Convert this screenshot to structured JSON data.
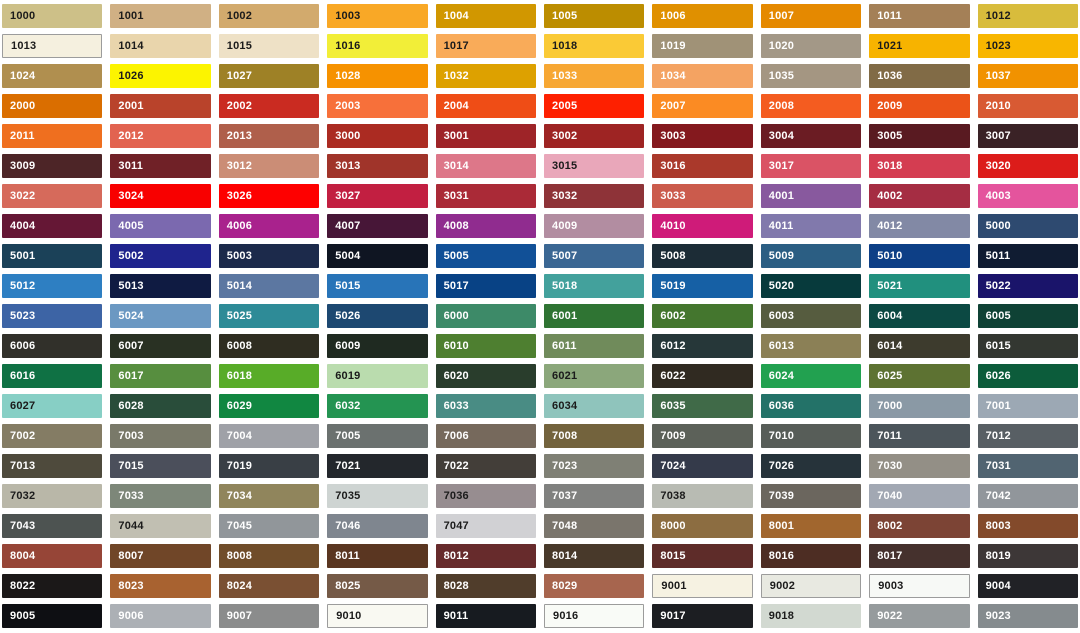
{
  "palette": {
    "page_bg": "#FFFFFF",
    "label_dark": "#1B1B1B",
    "label_light": "#FFFFFF",
    "light_swatch_border": "#9C9C9C"
  },
  "grid": {
    "columns": 10,
    "rows": 21
  },
  "swatches": [
    {
      "code": "1000",
      "hex": "#CDC088",
      "fg": "dark"
    },
    {
      "code": "1001",
      "hex": "#D0B084",
      "fg": "dark"
    },
    {
      "code": "1002",
      "hex": "#D2AA6D",
      "fg": "dark"
    },
    {
      "code": "1003",
      "hex": "#F9A826",
      "fg": "dark"
    },
    {
      "code": "1004",
      "hex": "#D19700",
      "fg": "light"
    },
    {
      "code": "1005",
      "hex": "#BC8D00",
      "fg": "light"
    },
    {
      "code": "1006",
      "hex": "#E09000",
      "fg": "light"
    },
    {
      "code": "1007",
      "hex": "#E58900",
      "fg": "light"
    },
    {
      "code": "1011",
      "hex": "#A48057",
      "fg": "light"
    },
    {
      "code": "1012",
      "hex": "#D8BC3C",
      "fg": "dark"
    },
    {
      "code": "1013",
      "hex": "#F5F0DF",
      "fg": "dark",
      "border": true
    },
    {
      "code": "1014",
      "hex": "#E9D5AC",
      "fg": "dark"
    },
    {
      "code": "1015",
      "hex": "#EEE1C6",
      "fg": "dark"
    },
    {
      "code": "1016",
      "hex": "#F2EE38",
      "fg": "dark"
    },
    {
      "code": "1017",
      "hex": "#F9AB59",
      "fg": "dark"
    },
    {
      "code": "1018",
      "hex": "#FACA36",
      "fg": "dark"
    },
    {
      "code": "1019",
      "hex": "#A09277",
      "fg": "light"
    },
    {
      "code": "1020",
      "hex": "#A39887",
      "fg": "light"
    },
    {
      "code": "1021",
      "hex": "#F7B300",
      "fg": "dark"
    },
    {
      "code": "1023",
      "hex": "#F8B600",
      "fg": "dark"
    },
    {
      "code": "1024",
      "hex": "#B08F4F",
      "fg": "light"
    },
    {
      "code": "1026",
      "hex": "#FCF400",
      "fg": "dark"
    },
    {
      "code": "1027",
      "hex": "#9E8126",
      "fg": "light"
    },
    {
      "code": "1028",
      "hex": "#F69200",
      "fg": "light"
    },
    {
      "code": "1032",
      "hex": "#DDA100",
      "fg": "light"
    },
    {
      "code": "1033",
      "hex": "#F7A733",
      "fg": "light"
    },
    {
      "code": "1034",
      "hex": "#F4A362",
      "fg": "light"
    },
    {
      "code": "1035",
      "hex": "#A49682",
      "fg": "light"
    },
    {
      "code": "1036",
      "hex": "#816B46",
      "fg": "light"
    },
    {
      "code": "1037",
      "hex": "#F19200",
      "fg": "light"
    },
    {
      "code": "2000",
      "hex": "#DA6E00",
      "fg": "light"
    },
    {
      "code": "2001",
      "hex": "#B9432B",
      "fg": "light"
    },
    {
      "code": "2002",
      "hex": "#CA2B21",
      "fg": "light"
    },
    {
      "code": "2003",
      "hex": "#F7703A",
      "fg": "light"
    },
    {
      "code": "2004",
      "hex": "#EF4D16",
      "fg": "light"
    },
    {
      "code": "2005",
      "hex": "#FE2000",
      "fg": "light"
    },
    {
      "code": "2007",
      "hex": "#FB8B23",
      "fg": "light"
    },
    {
      "code": "2008",
      "hex": "#F45C20",
      "fg": "light"
    },
    {
      "code": "2009",
      "hex": "#EB5318",
      "fg": "light"
    },
    {
      "code": "2010",
      "hex": "#D85A33",
      "fg": "light"
    },
    {
      "code": "2011",
      "hex": "#EF6F1F",
      "fg": "light"
    },
    {
      "code": "2012",
      "hex": "#E26350",
      "fg": "light"
    },
    {
      "code": "2013",
      "hex": "#AF5F4B",
      "fg": "light"
    },
    {
      "code": "3000",
      "hex": "#AB2B22",
      "fg": "light"
    },
    {
      "code": "3001",
      "hex": "#9E2428",
      "fg": "light"
    },
    {
      "code": "3002",
      "hex": "#9E2423",
      "fg": "light"
    },
    {
      "code": "3003",
      "hex": "#84191E",
      "fg": "light"
    },
    {
      "code": "3004",
      "hex": "#6B1C23",
      "fg": "light"
    },
    {
      "code": "3005",
      "hex": "#591A21",
      "fg": "light"
    },
    {
      "code": "3007",
      "hex": "#3A2226",
      "fg": "light"
    },
    {
      "code": "3009",
      "hex": "#4D2527",
      "fg": "light"
    },
    {
      "code": "3011",
      "hex": "#702127",
      "fg": "light"
    },
    {
      "code": "3012",
      "hex": "#CB8D76",
      "fg": "light"
    },
    {
      "code": "3013",
      "hex": "#A0342A",
      "fg": "light"
    },
    {
      "code": "3014",
      "hex": "#DD7789",
      "fg": "light"
    },
    {
      "code": "3015",
      "hex": "#E9A7BA",
      "fg": "dark"
    },
    {
      "code": "3016",
      "hex": "#AA392B",
      "fg": "light"
    },
    {
      "code": "3017",
      "hex": "#DA5365",
      "fg": "light"
    },
    {
      "code": "3018",
      "hex": "#D43D51",
      "fg": "light"
    },
    {
      "code": "3020",
      "hex": "#DC1C1A",
      "fg": "light"
    },
    {
      "code": "3022",
      "hex": "#D66A5B",
      "fg": "light"
    },
    {
      "code": "3024",
      "hex": "#F80000",
      "fg": "light"
    },
    {
      "code": "3026",
      "hex": "#FE0000",
      "fg": "light"
    },
    {
      "code": "3027",
      "hex": "#C21F41",
      "fg": "light"
    },
    {
      "code": "3031",
      "hex": "#AA2A37",
      "fg": "light"
    },
    {
      "code": "3032",
      "hex": "#8E3338",
      "fg": "light"
    },
    {
      "code": "3033",
      "hex": "#CB5B4C",
      "fg": "light"
    },
    {
      "code": "4001",
      "hex": "#88599E",
      "fg": "light"
    },
    {
      "code": "4002",
      "hex": "#A52D43",
      "fg": "light"
    },
    {
      "code": "4003",
      "hex": "#E4549D",
      "fg": "light"
    },
    {
      "code": "4004",
      "hex": "#651735",
      "fg": "light"
    },
    {
      "code": "4005",
      "hex": "#7B69AF",
      "fg": "light"
    },
    {
      "code": "4006",
      "hex": "#A9228D",
      "fg": "light"
    },
    {
      "code": "4007",
      "hex": "#471637",
      "fg": "light"
    },
    {
      "code": "4008",
      "hex": "#902C8F",
      "fg": "light"
    },
    {
      "code": "4009",
      "hex": "#B28DA1",
      "fg": "light"
    },
    {
      "code": "4010",
      "hex": "#CF1B79",
      "fg": "light"
    },
    {
      "code": "4011",
      "hex": "#8179AC",
      "fg": "light"
    },
    {
      "code": "4012",
      "hex": "#8289A5",
      "fg": "light"
    },
    {
      "code": "5000",
      "hex": "#2E4A70",
      "fg": "light"
    },
    {
      "code": "5001",
      "hex": "#1B4158",
      "fg": "light"
    },
    {
      "code": "5002",
      "hex": "#1F248D",
      "fg": "light"
    },
    {
      "code": "5003",
      "hex": "#1C2A4B",
      "fg": "light"
    },
    {
      "code": "5004",
      "hex": "#0F1522",
      "fg": "light"
    },
    {
      "code": "5005",
      "hex": "#115097",
      "fg": "light"
    },
    {
      "code": "5007",
      "hex": "#3B6793",
      "fg": "light"
    },
    {
      "code": "5008",
      "hex": "#1C2C36",
      "fg": "light"
    },
    {
      "code": "5009",
      "hex": "#2B5E83",
      "fg": "light"
    },
    {
      "code": "5010",
      "hex": "#0D3F86",
      "fg": "light"
    },
    {
      "code": "5011",
      "hex": "#101C32",
      "fg": "light"
    },
    {
      "code": "5012",
      "hex": "#2E7FC2",
      "fg": "light"
    },
    {
      "code": "5013",
      "hex": "#0F1B42",
      "fg": "light"
    },
    {
      "code": "5014",
      "hex": "#5C77A1",
      "fg": "light"
    },
    {
      "code": "5015",
      "hex": "#2874B8",
      "fg": "light"
    },
    {
      "code": "5017",
      "hex": "#084285",
      "fg": "light"
    },
    {
      "code": "5018",
      "hex": "#43A19C",
      "fg": "light"
    },
    {
      "code": "5019",
      "hex": "#1660A5",
      "fg": "light"
    },
    {
      "code": "5020",
      "hex": "#073A3C",
      "fg": "light"
    },
    {
      "code": "5021",
      "hex": "#21907E",
      "fg": "light"
    },
    {
      "code": "5022",
      "hex": "#1A146A",
      "fg": "light"
    },
    {
      "code": "5023",
      "hex": "#3D64A5",
      "fg": "light"
    },
    {
      "code": "5024",
      "hex": "#6B98C2",
      "fg": "light"
    },
    {
      "code": "5025",
      "hex": "#2E8B97",
      "fg": "light"
    },
    {
      "code": "5026",
      "hex": "#1D4871",
      "fg": "light"
    },
    {
      "code": "6000",
      "hex": "#3D8A68",
      "fg": "light"
    },
    {
      "code": "6001",
      "hex": "#2F7433",
      "fg": "light"
    },
    {
      "code": "6002",
      "hex": "#44762E",
      "fg": "light"
    },
    {
      "code": "6003",
      "hex": "#565C3F",
      "fg": "light"
    },
    {
      "code": "6004",
      "hex": "#0C4943",
      "fg": "light"
    },
    {
      "code": "6005",
      "hex": "#0F4235",
      "fg": "light"
    },
    {
      "code": "6006",
      "hex": "#31302A",
      "fg": "light"
    },
    {
      "code": "6007",
      "hex": "#293123",
      "fg": "light"
    },
    {
      "code": "6008",
      "hex": "#2F2D21",
      "fg": "light"
    },
    {
      "code": "6009",
      "hex": "#1F2A21",
      "fg": "light"
    },
    {
      "code": "6010",
      "hex": "#4E7F30",
      "fg": "light"
    },
    {
      "code": "6011",
      "hex": "#708B5B",
      "fg": "light"
    },
    {
      "code": "6012",
      "hex": "#263739",
      "fg": "light"
    },
    {
      "code": "6013",
      "hex": "#8B8056",
      "fg": "light"
    },
    {
      "code": "6014",
      "hex": "#3D3B2D",
      "fg": "light"
    },
    {
      "code": "6015",
      "hex": "#333731",
      "fg": "light"
    },
    {
      "code": "6016",
      "hex": "#0F7144",
      "fg": "light"
    },
    {
      "code": "6017",
      "hex": "#578E3F",
      "fg": "light"
    },
    {
      "code": "6018",
      "hex": "#58AC28",
      "fg": "light"
    },
    {
      "code": "6019",
      "hex": "#BADCAE",
      "fg": "dark"
    },
    {
      "code": "6020",
      "hex": "#293D2C",
      "fg": "light"
    },
    {
      "code": "6021",
      "hex": "#8BA77B",
      "fg": "dark"
    },
    {
      "code": "6022",
      "hex": "#302A21",
      "fg": "light"
    },
    {
      "code": "6024",
      "hex": "#22A150",
      "fg": "light"
    },
    {
      "code": "6025",
      "hex": "#5D7232",
      "fg": "light"
    },
    {
      "code": "6026",
      "hex": "#0C5C3B",
      "fg": "light"
    },
    {
      "code": "6027",
      "hex": "#87CFC5",
      "fg": "dark"
    },
    {
      "code": "6028",
      "hex": "#294D3A",
      "fg": "light"
    },
    {
      "code": "6029",
      "hex": "#118741",
      "fg": "light"
    },
    {
      "code": "6032",
      "hex": "#249452",
      "fg": "light"
    },
    {
      "code": "6033",
      "hex": "#498C84",
      "fg": "light"
    },
    {
      "code": "6034",
      "hex": "#8FC4BC",
      "fg": "dark"
    },
    {
      "code": "6035",
      "hex": "#406A48",
      "fg": "light"
    },
    {
      "code": "6036",
      "hex": "#237268",
      "fg": "light"
    },
    {
      "code": "7000",
      "hex": "#8A99A5",
      "fg": "light"
    },
    {
      "code": "7001",
      "hex": "#9CA8B4",
      "fg": "light"
    },
    {
      "code": "7002",
      "hex": "#847C64",
      "fg": "light"
    },
    {
      "code": "7003",
      "hex": "#797969",
      "fg": "light"
    },
    {
      "code": "7004",
      "hex": "#9FA1A7",
      "fg": "light"
    },
    {
      "code": "7005",
      "hex": "#6B716F",
      "fg": "light"
    },
    {
      "code": "7006",
      "hex": "#76695C",
      "fg": "light"
    },
    {
      "code": "7008",
      "hex": "#73633D",
      "fg": "light"
    },
    {
      "code": "7009",
      "hex": "#5C6159",
      "fg": "light"
    },
    {
      "code": "7010",
      "hex": "#575D58",
      "fg": "light"
    },
    {
      "code": "7011",
      "hex": "#4C555B",
      "fg": "light"
    },
    {
      "code": "7012",
      "hex": "#585F64",
      "fg": "light"
    },
    {
      "code": "7013",
      "hex": "#4E4A3C",
      "fg": "light"
    },
    {
      "code": "7015",
      "hex": "#4B4F5B",
      "fg": "light"
    },
    {
      "code": "7019",
      "hex": "#393F45",
      "fg": "light"
    },
    {
      "code": "7021",
      "hex": "#23272C",
      "fg": "light"
    },
    {
      "code": "7022",
      "hex": "#433E39",
      "fg": "light"
    },
    {
      "code": "7023",
      "hex": "#7F8075",
      "fg": "light"
    },
    {
      "code": "7024",
      "hex": "#343A4A",
      "fg": "light"
    },
    {
      "code": "7026",
      "hex": "#26333A",
      "fg": "light"
    },
    {
      "code": "7030",
      "hex": "#938F86",
      "fg": "light"
    },
    {
      "code": "7031",
      "hex": "#516471",
      "fg": "light"
    },
    {
      "code": "7032",
      "hex": "#B9B7A8",
      "fg": "dark"
    },
    {
      "code": "7033",
      "hex": "#7D8779",
      "fg": "light"
    },
    {
      "code": "7034",
      "hex": "#90855C",
      "fg": "light"
    },
    {
      "code": "7035",
      "hex": "#CED4D2",
      "fg": "dark"
    },
    {
      "code": "7036",
      "hex": "#978D90",
      "fg": "dark"
    },
    {
      "code": "7037",
      "hex": "#80817F",
      "fg": "light"
    },
    {
      "code": "7038",
      "hex": "#B8BBB3",
      "fg": "dark"
    },
    {
      "code": "7039",
      "hex": "#6B665E",
      "fg": "light"
    },
    {
      "code": "7040",
      "hex": "#A2A8B3",
      "fg": "light"
    },
    {
      "code": "7042",
      "hex": "#91969B",
      "fg": "light"
    },
    {
      "code": "7043",
      "hex": "#4D5351",
      "fg": "light"
    },
    {
      "code": "7044",
      "hex": "#C1BFB2",
      "fg": "dark"
    },
    {
      "code": "7045",
      "hex": "#91969A",
      "fg": "light"
    },
    {
      "code": "7046",
      "hex": "#7F868F",
      "fg": "light"
    },
    {
      "code": "7047",
      "hex": "#D1D1D4",
      "fg": "dark"
    },
    {
      "code": "7048",
      "hex": "#7A756C",
      "fg": "light"
    },
    {
      "code": "8000",
      "hex": "#8C6D41",
      "fg": "light"
    },
    {
      "code": "8001",
      "hex": "#A1662E",
      "fg": "light"
    },
    {
      "code": "8002",
      "hex": "#7C4435",
      "fg": "light"
    },
    {
      "code": "8003",
      "hex": "#834A2B",
      "fg": "light"
    },
    {
      "code": "8004",
      "hex": "#964537",
      "fg": "light"
    },
    {
      "code": "8007",
      "hex": "#704628",
      "fg": "light"
    },
    {
      "code": "8008",
      "hex": "#704D2A",
      "fg": "light"
    },
    {
      "code": "8011",
      "hex": "#5A3621",
      "fg": "light"
    },
    {
      "code": "8012",
      "hex": "#672B2C",
      "fg": "light"
    },
    {
      "code": "8014",
      "hex": "#48392A",
      "fg": "light"
    },
    {
      "code": "8015",
      "hex": "#5E2C29",
      "fg": "light"
    },
    {
      "code": "8016",
      "hex": "#4D2D23",
      "fg": "light"
    },
    {
      "code": "8017",
      "hex": "#45312D",
      "fg": "light"
    },
    {
      "code": "8019",
      "hex": "#3D3737",
      "fg": "light"
    },
    {
      "code": "8022",
      "hex": "#1B1818",
      "fg": "light"
    },
    {
      "code": "8023",
      "hex": "#A86230",
      "fg": "light"
    },
    {
      "code": "8024",
      "hex": "#7A5033",
      "fg": "light"
    },
    {
      "code": "8025",
      "hex": "#755A47",
      "fg": "light"
    },
    {
      "code": "8028",
      "hex": "#503D2B",
      "fg": "light"
    },
    {
      "code": "8029",
      "hex": "#A7654E",
      "fg": "light"
    },
    {
      "code": "9001",
      "hex": "#F6F2E2",
      "fg": "dark",
      "border": true
    },
    {
      "code": "9002",
      "hex": "#E8E9E1",
      "fg": "dark",
      "border": true
    },
    {
      "code": "9003",
      "hex": "#F7F9F6",
      "fg": "dark",
      "border": true
    },
    {
      "code": "9004",
      "hex": "#212226",
      "fg": "light"
    },
    {
      "code": "9005",
      "hex": "#0E0F13",
      "fg": "light"
    },
    {
      "code": "9006",
      "hex": "#ACB0B5",
      "fg": "light"
    },
    {
      "code": "9007",
      "hex": "#8B8C8C",
      "fg": "light"
    },
    {
      "code": "9010",
      "hex": "#F9F9F2",
      "fg": "dark",
      "border": true
    },
    {
      "code": "9011",
      "hex": "#171B20",
      "fg": "light"
    },
    {
      "code": "9016",
      "hex": "#F9FBF7",
      "fg": "dark",
      "border": true
    },
    {
      "code": "9017",
      "hex": "#1C1E22",
      "fg": "light"
    },
    {
      "code": "9018",
      "hex": "#D2D9D1",
      "fg": "dark"
    },
    {
      "code": "9022",
      "hex": "#969B9D",
      "fg": "light"
    },
    {
      "code": "9023",
      "hex": "#858B8E",
      "fg": "light"
    }
  ]
}
